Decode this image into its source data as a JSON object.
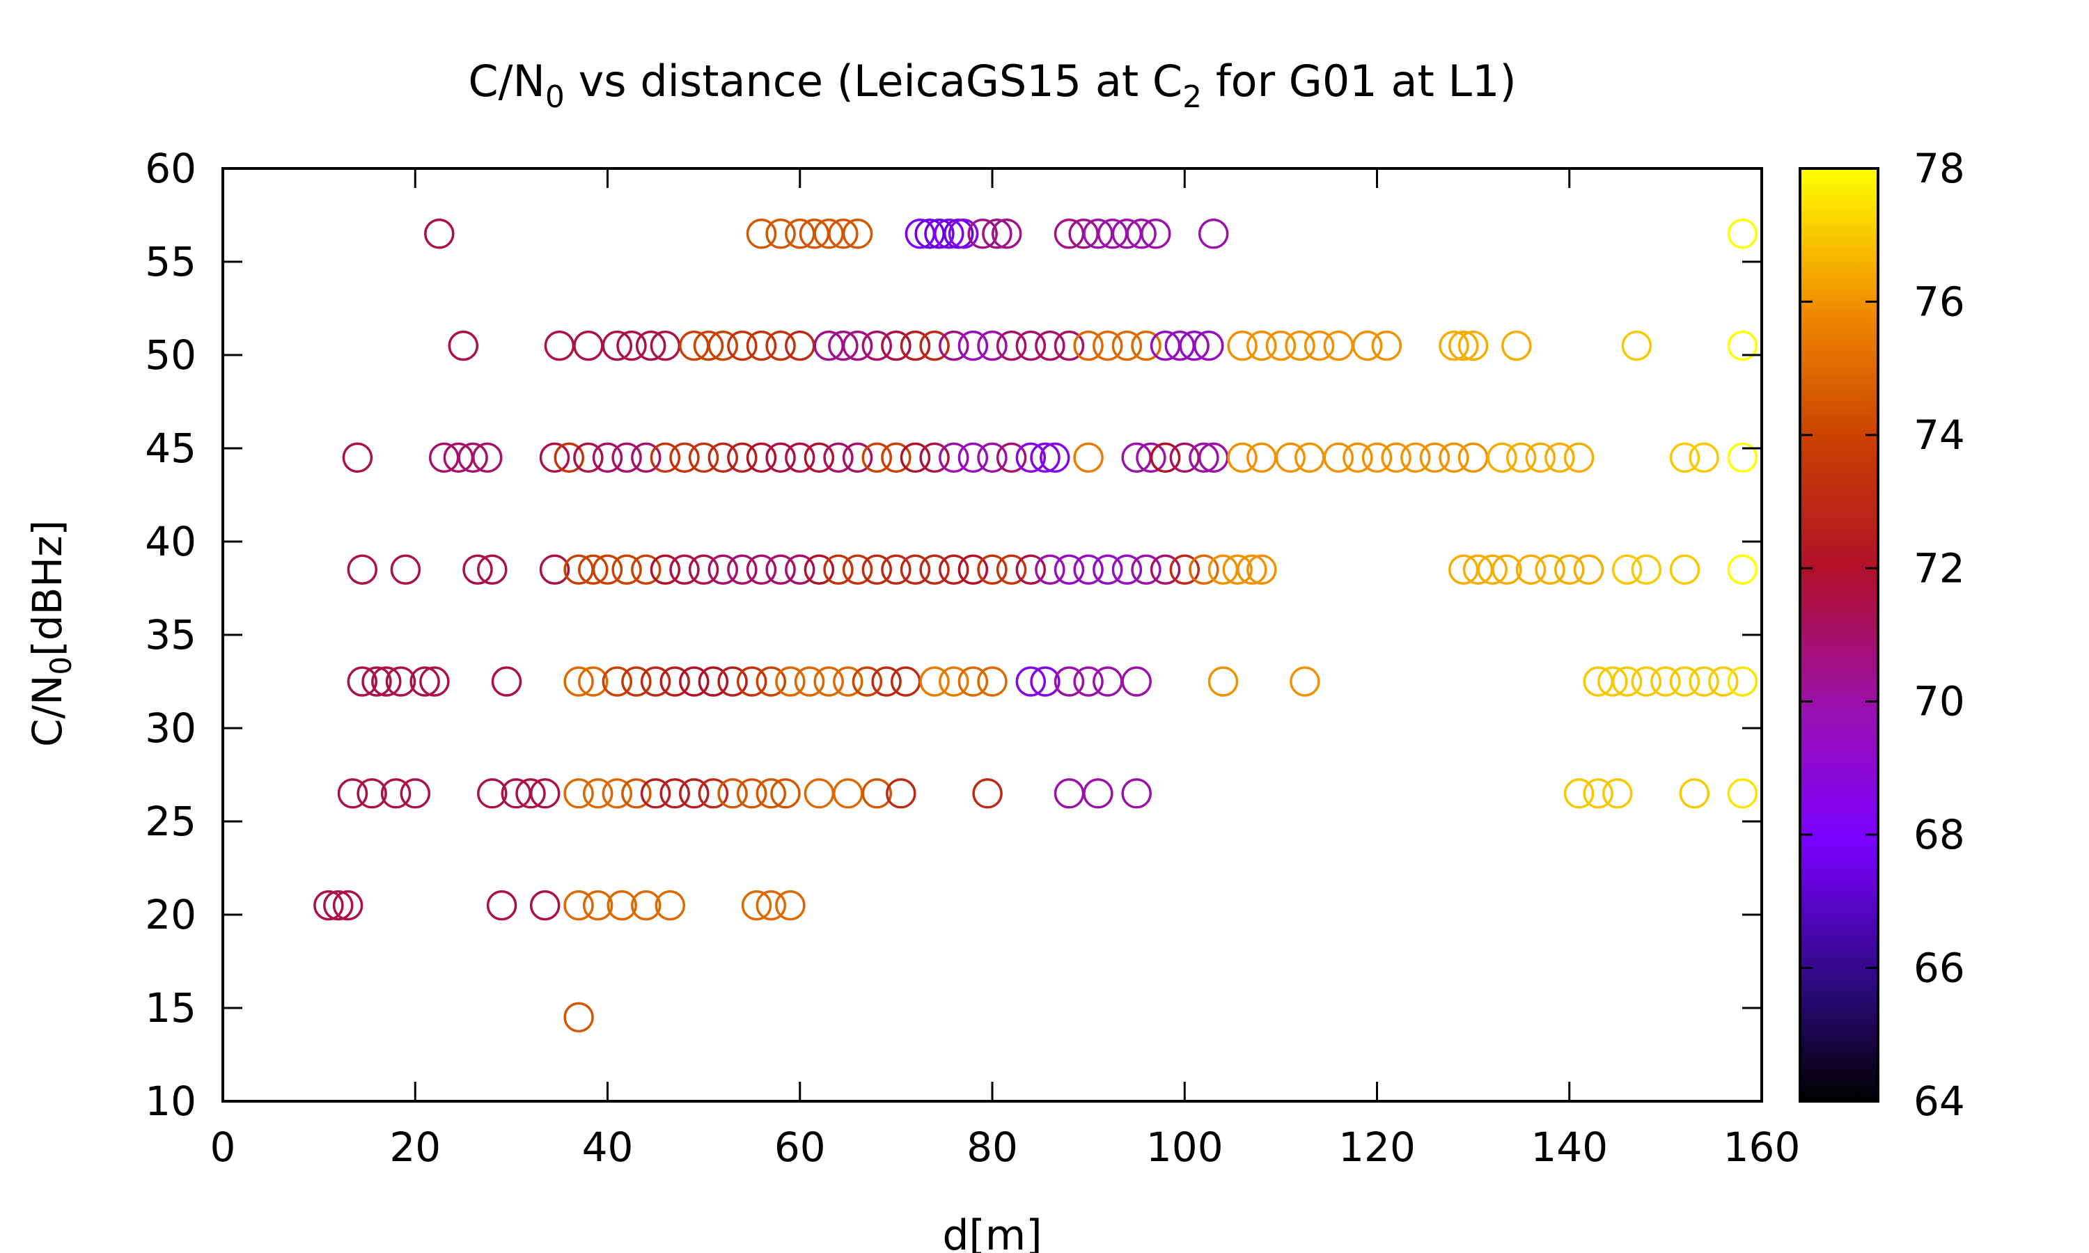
{
  "chart_data": {
    "type": "scatter",
    "title": {
      "pre": "C/N",
      "sub": "0",
      "mid": " vs distance (LeicaGS15 at C",
      "sub2": "2",
      "post": " for G01 at L1)"
    },
    "xlabel": "d[m]",
    "ylabel": {
      "pre": "C/N",
      "sub": "0",
      "post": "[dBHz]"
    },
    "xlim": [
      0,
      160
    ],
    "ylim": [
      10,
      60
    ],
    "x_ticks": [
      "0",
      "20",
      "40",
      "60",
      "80",
      "100",
      "120",
      "140",
      "160"
    ],
    "y_ticks": [
      "10",
      "15",
      "20",
      "25",
      "30",
      "35",
      "40",
      "45",
      "50",
      "55",
      "60"
    ],
    "colorbar": {
      "range": [
        64,
        78
      ],
      "ticks": [
        "64",
        "66",
        "68",
        "70",
        "72",
        "74",
        "76",
        "78"
      ],
      "palette": "black-blue-purple-red-orange-yellow"
    },
    "marker": "open-circle",
    "grid": false,
    "legend": "none",
    "levels": [
      {
        "y": 56.5,
        "points": [
          [
            22.5,
            71.5
          ],
          [
            56,
            74.5
          ],
          [
            58,
            74.5
          ],
          [
            60,
            74.5
          ],
          [
            61.5,
            74.5
          ],
          [
            63,
            74.5
          ],
          [
            64.5,
            74.5
          ],
          [
            66,
            74.5
          ],
          [
            72.5,
            68
          ],
          [
            73.5,
            67.5
          ],
          [
            74.5,
            67.5
          ],
          [
            75.5,
            68
          ],
          [
            76.5,
            67.5
          ],
          [
            77,
            68.5
          ],
          [
            79,
            70.5
          ],
          [
            80.5,
            70.5
          ],
          [
            81.5,
            70.5
          ],
          [
            88,
            70.5
          ],
          [
            89.5,
            70.5
          ],
          [
            91,
            70
          ],
          [
            92.5,
            70
          ],
          [
            94,
            70
          ],
          [
            95.5,
            70
          ],
          [
            97,
            70
          ],
          [
            103,
            70
          ],
          [
            158,
            78
          ]
        ]
      },
      {
        "y": 50.5,
        "points": [
          [
            25,
            71.5
          ],
          [
            35,
            71.5
          ],
          [
            38,
            71.5
          ],
          [
            41,
            71.5
          ],
          [
            42.5,
            71.5
          ],
          [
            44.5,
            71.5
          ],
          [
            46,
            71.5
          ],
          [
            49,
            74
          ],
          [
            50.5,
            74
          ],
          [
            52,
            74
          ],
          [
            54,
            73.5
          ],
          [
            56,
            73.5
          ],
          [
            58,
            73.5
          ],
          [
            60,
            73
          ],
          [
            63,
            70.5
          ],
          [
            64.5,
            70.5
          ],
          [
            66,
            70.5
          ],
          [
            68,
            71
          ],
          [
            70,
            71.5
          ],
          [
            72,
            72.5
          ],
          [
            74,
            73
          ],
          [
            76,
            70.5
          ],
          [
            78,
            69.5
          ],
          [
            80,
            70
          ],
          [
            82,
            71
          ],
          [
            84,
            71
          ],
          [
            86,
            71
          ],
          [
            88,
            71
          ],
          [
            90,
            75
          ],
          [
            92,
            75
          ],
          [
            94,
            75
          ],
          [
            96,
            75
          ],
          [
            98,
            69.5
          ],
          [
            99.5,
            69.5
          ],
          [
            101,
            69.5
          ],
          [
            102.5,
            69.5
          ],
          [
            106,
            76
          ],
          [
            108,
            76
          ],
          [
            110,
            76
          ],
          [
            112,
            76
          ],
          [
            114,
            76
          ],
          [
            116,
            76
          ],
          [
            119,
            76
          ],
          [
            121,
            76
          ],
          [
            128,
            76.5
          ],
          [
            129,
            76.5
          ],
          [
            130,
            76.5
          ],
          [
            134.5,
            76.5
          ],
          [
            147,
            77
          ],
          [
            158,
            78
          ]
        ]
      },
      {
        "y": 44.5,
        "points": [
          [
            14,
            71.5
          ],
          [
            23,
            71
          ],
          [
            24.5,
            71
          ],
          [
            26,
            71
          ],
          [
            27.5,
            71
          ],
          [
            34.5,
            71.5
          ],
          [
            36,
            73.5
          ],
          [
            38,
            71.5
          ],
          [
            40,
            71
          ],
          [
            42,
            71
          ],
          [
            44,
            71
          ],
          [
            46,
            73.5
          ],
          [
            48,
            73.5
          ],
          [
            50,
            73.5
          ],
          [
            52,
            73
          ],
          [
            54,
            72.5
          ],
          [
            56,
            72
          ],
          [
            58,
            71.5
          ],
          [
            60,
            71.5
          ],
          [
            62,
            72
          ],
          [
            64,
            71
          ],
          [
            66,
            71
          ],
          [
            68,
            74
          ],
          [
            70,
            74
          ],
          [
            72,
            72
          ],
          [
            74,
            71.5
          ],
          [
            76,
            70
          ],
          [
            78,
            69.5
          ],
          [
            80,
            70
          ],
          [
            82,
            71
          ],
          [
            84,
            68.5
          ],
          [
            85.5,
            68.5
          ],
          [
            86.5,
            68.5
          ],
          [
            90,
            75.5
          ],
          [
            95,
            70
          ],
          [
            96.5,
            70
          ],
          [
            98,
            72
          ],
          [
            100,
            71
          ],
          [
            102,
            70
          ],
          [
            103,
            70
          ],
          [
            106,
            76
          ],
          [
            108,
            76
          ],
          [
            111,
            76
          ],
          [
            113,
            76
          ],
          [
            116,
            76
          ],
          [
            118,
            76
          ],
          [
            120,
            76
          ],
          [
            122,
            76
          ],
          [
            124,
            76
          ],
          [
            126,
            76
          ],
          [
            128,
            76
          ],
          [
            130,
            76
          ],
          [
            133,
            76.5
          ],
          [
            135,
            76.5
          ],
          [
            137,
            76.5
          ],
          [
            139,
            76.5
          ],
          [
            141,
            76.5
          ],
          [
            152,
            77
          ],
          [
            154,
            77
          ],
          [
            158,
            78
          ]
        ]
      },
      {
        "y": 38.5,
        "points": [
          [
            14.5,
            71.5
          ],
          [
            19,
            71.5
          ],
          [
            26.5,
            71.5
          ],
          [
            28,
            71.5
          ],
          [
            34.5,
            71.5
          ],
          [
            37,
            74
          ],
          [
            38.5,
            74
          ],
          [
            40,
            74
          ],
          [
            42,
            74
          ],
          [
            44,
            74
          ],
          [
            46,
            72
          ],
          [
            48,
            71.5
          ],
          [
            50,
            71.5
          ],
          [
            52,
            71
          ],
          [
            54,
            71
          ],
          [
            56,
            71
          ],
          [
            58,
            71
          ],
          [
            60,
            71
          ],
          [
            62,
            72
          ],
          [
            64,
            73.5
          ],
          [
            66,
            73.5
          ],
          [
            68,
            73
          ],
          [
            70,
            73
          ],
          [
            72,
            73
          ],
          [
            74,
            73
          ],
          [
            76,
            72.5
          ],
          [
            78,
            72
          ],
          [
            80,
            73.5
          ],
          [
            82,
            73.5
          ],
          [
            84,
            71.5
          ],
          [
            86,
            70
          ],
          [
            88,
            69.5
          ],
          [
            90,
            69.5
          ],
          [
            92,
            69.5
          ],
          [
            94,
            69.5
          ],
          [
            96,
            70
          ],
          [
            98,
            71
          ],
          [
            100,
            73
          ],
          [
            102,
            75
          ],
          [
            104,
            76
          ],
          [
            105.5,
            76
          ],
          [
            107,
            76
          ],
          [
            108,
            76
          ],
          [
            129,
            76.5
          ],
          [
            130.5,
            76.5
          ],
          [
            132,
            76.5
          ],
          [
            133.5,
            76.5
          ],
          [
            136,
            76.5
          ],
          [
            138,
            76.5
          ],
          [
            140,
            76.5
          ],
          [
            142,
            76.5
          ],
          [
            146,
            77
          ],
          [
            148,
            77
          ],
          [
            152,
            77
          ],
          [
            158,
            78
          ]
        ]
      },
      {
        "y": 32.5,
        "points": [
          [
            14.5,
            71.5
          ],
          [
            16,
            71.5
          ],
          [
            17,
            71.5
          ],
          [
            18.5,
            71.5
          ],
          [
            21,
            71.5
          ],
          [
            22,
            71.5
          ],
          [
            29.5,
            71.5
          ],
          [
            37,
            75
          ],
          [
            38.5,
            75
          ],
          [
            41,
            74
          ],
          [
            43,
            73.5
          ],
          [
            45,
            73
          ],
          [
            47,
            72.5
          ],
          [
            49,
            72
          ],
          [
            51,
            72
          ],
          [
            53,
            72.5
          ],
          [
            55,
            73.5
          ],
          [
            57,
            74
          ],
          [
            59,
            75
          ],
          [
            61,
            75
          ],
          [
            63,
            75
          ],
          [
            65,
            75
          ],
          [
            67,
            74
          ],
          [
            69,
            73
          ],
          [
            71,
            73
          ],
          [
            74,
            75.5
          ],
          [
            76,
            75.5
          ],
          [
            78,
            75
          ],
          [
            80,
            75
          ],
          [
            84,
            68.5
          ],
          [
            85.5,
            68.5
          ],
          [
            88,
            70
          ],
          [
            90,
            70
          ],
          [
            92,
            70
          ],
          [
            95,
            70
          ],
          [
            104,
            76
          ],
          [
            112.5,
            76
          ],
          [
            143,
            77
          ],
          [
            144.5,
            77
          ],
          [
            146,
            77
          ],
          [
            148,
            77
          ],
          [
            150,
            77
          ],
          [
            152,
            77
          ],
          [
            154,
            77
          ],
          [
            156,
            77
          ],
          [
            158,
            77.5
          ]
        ]
      },
      {
        "y": 26.5,
        "points": [
          [
            13.5,
            71.5
          ],
          [
            15.5,
            71.5
          ],
          [
            18,
            71.5
          ],
          [
            20,
            71.5
          ],
          [
            28,
            71.5
          ],
          [
            30.5,
            71.5
          ],
          [
            32,
            71.5
          ],
          [
            33.5,
            71.5
          ],
          [
            37,
            75
          ],
          [
            39,
            75
          ],
          [
            41,
            75
          ],
          [
            43,
            74.5
          ],
          [
            45,
            72.5
          ],
          [
            47,
            72.5
          ],
          [
            49,
            72.5
          ],
          [
            51,
            73
          ],
          [
            53,
            74.5
          ],
          [
            55,
            74.5
          ],
          [
            57,
            74.5
          ],
          [
            58.5,
            74.5
          ],
          [
            62,
            75
          ],
          [
            65,
            75
          ],
          [
            68,
            74.5
          ],
          [
            70.5,
            73
          ],
          [
            79.5,
            73
          ],
          [
            88,
            70
          ],
          [
            91,
            70
          ],
          [
            95,
            70
          ],
          [
            141,
            77
          ],
          [
            143,
            77
          ],
          [
            145,
            77
          ],
          [
            153,
            77
          ],
          [
            158,
            77.5
          ]
        ]
      },
      {
        "y": 20.5,
        "points": [
          [
            11,
            71.5
          ],
          [
            12,
            71.5
          ],
          [
            13,
            71.5
          ],
          [
            29,
            71.5
          ],
          [
            33.5,
            71.5
          ],
          [
            37,
            75
          ],
          [
            39,
            75
          ],
          [
            41.5,
            75
          ],
          [
            44,
            75
          ],
          [
            46.5,
            75
          ],
          [
            55.5,
            75
          ],
          [
            57,
            75
          ],
          [
            59,
            75
          ]
        ]
      },
      {
        "y": 14.5,
        "points": [
          [
            37,
            74.5
          ]
        ]
      }
    ]
  }
}
